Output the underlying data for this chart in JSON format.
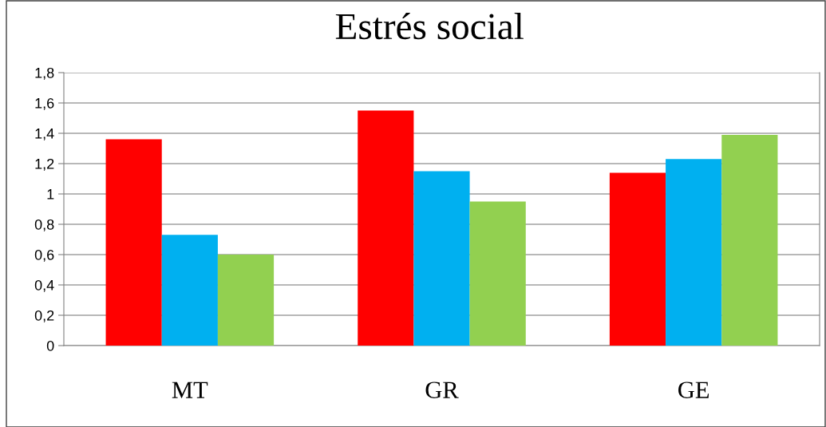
{
  "chart_data": {
    "type": "bar",
    "title": "Estrés social",
    "categories": [
      "MT",
      "GR",
      "GE"
    ],
    "series": [
      {
        "color": "#ff0000",
        "values": [
          1.36,
          1.55,
          1.14
        ]
      },
      {
        "color": "#00b0f0",
        "values": [
          0.73,
          1.15,
          1.23
        ]
      },
      {
        "color": "#92d050",
        "values": [
          0.6,
          0.95,
          1.39
        ]
      }
    ],
    "ylim": [
      0,
      1.8
    ],
    "yticks": [
      0,
      {
        "value": 0.2,
        "label": "0,2"
      },
      {
        "value": 0.4,
        "label": "0,4"
      },
      {
        "value": 0.6,
        "label": "0,6"
      },
      {
        "value": 0.8,
        "label": "0,8"
      },
      1,
      {
        "value": 1.2,
        "label": "1,2"
      },
      {
        "value": 1.4,
        "label": "1,4"
      },
      {
        "value": 1.6,
        "label": "1,6"
      },
      {
        "value": 1.8,
        "label": "1,8"
      }
    ],
    "grid": "y"
  }
}
